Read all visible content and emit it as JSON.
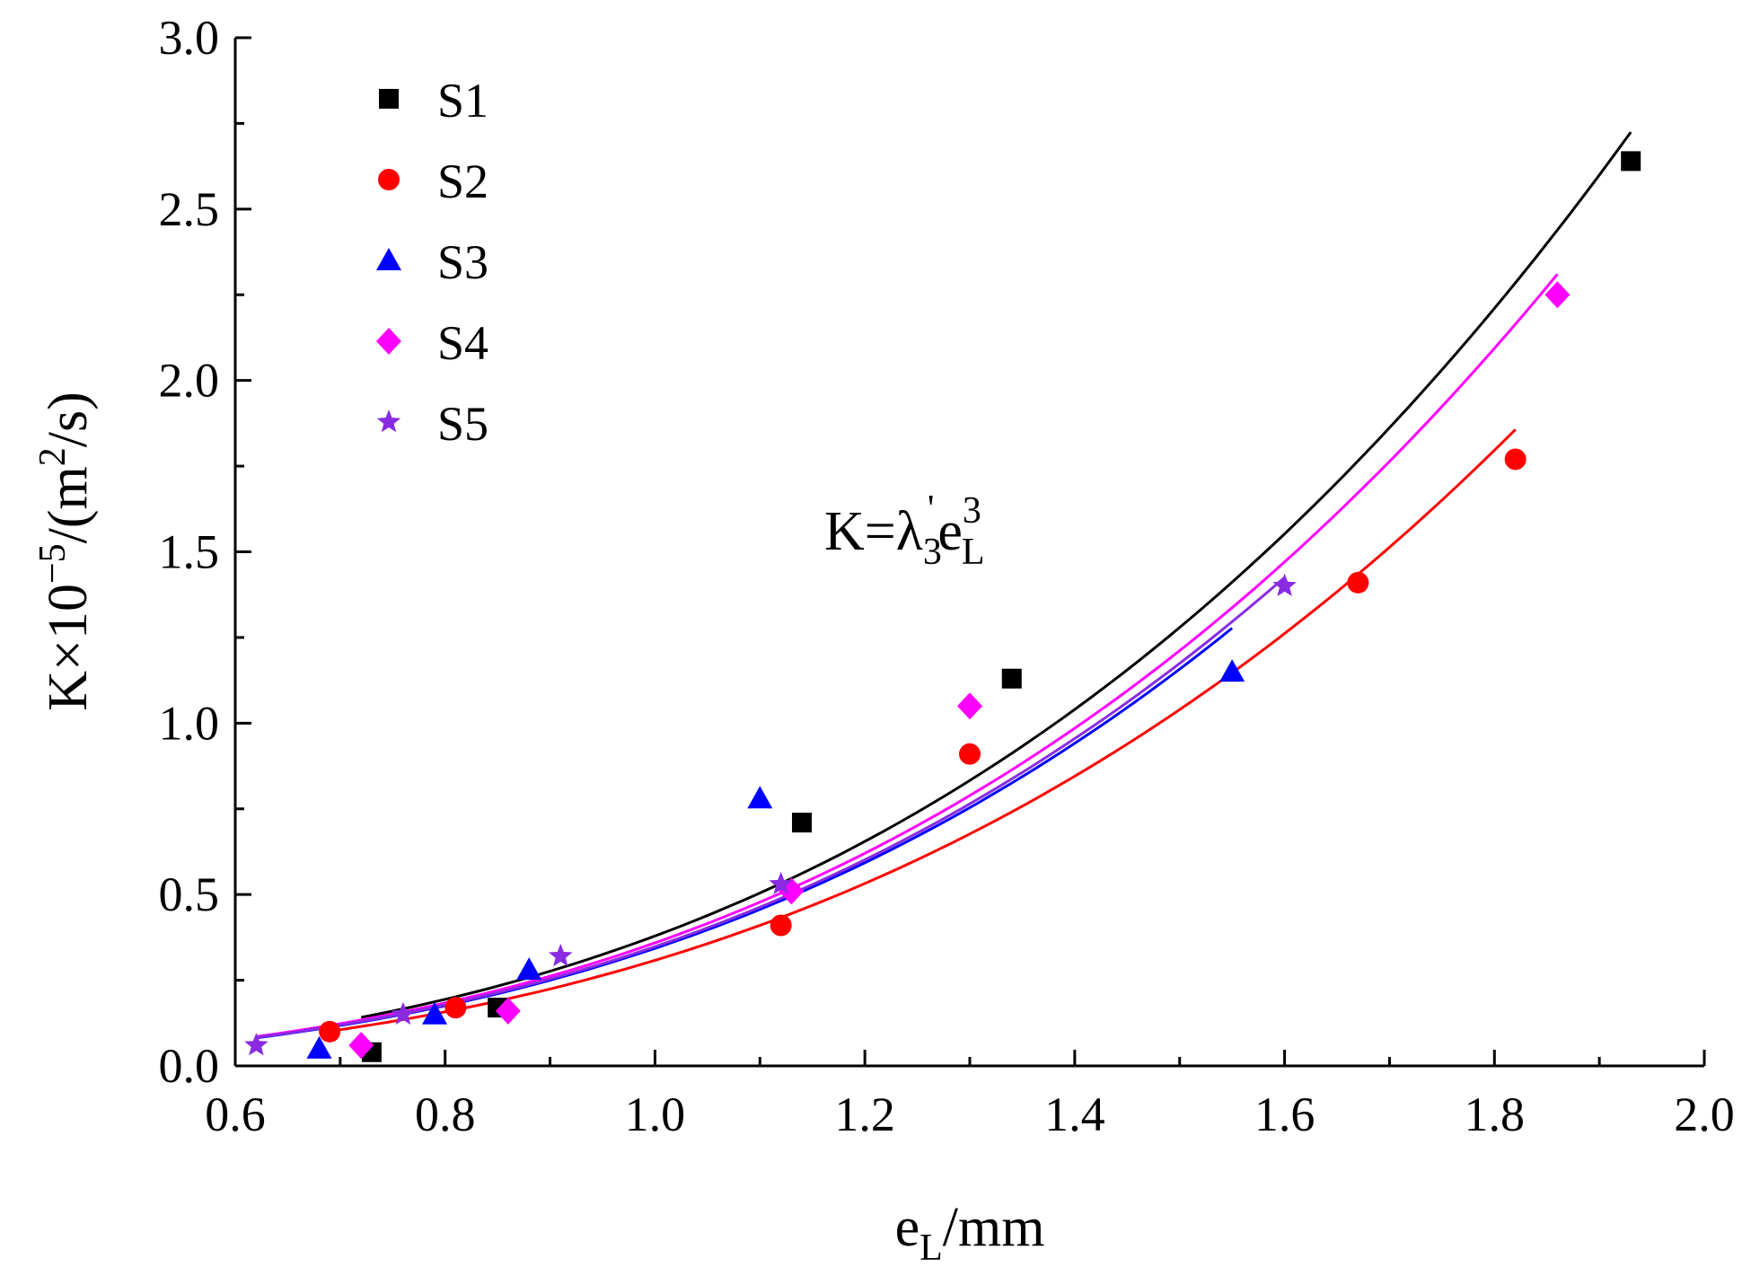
{
  "chart_data": {
    "type": "scatter",
    "xlabel": {
      "main": "e",
      "sub": "L",
      "rest": "/mm"
    },
    "ylabel": {
      "main": "K×10",
      "sup1": "−5",
      "mid": "/(m",
      "sup2": "2",
      "end": "/s)"
    },
    "xlim": [
      0.6,
      2.0
    ],
    "ylim": [
      0.0,
      3.0
    ],
    "xticks": [
      0.6,
      0.8,
      1.0,
      1.2,
      1.4,
      1.6,
      1.8,
      2.0
    ],
    "yticks": [
      0.0,
      0.5,
      1.0,
      1.5,
      2.0,
      2.5,
      3.0
    ],
    "xtick_labels": [
      "0.6",
      "0.8",
      "1.0",
      "1.2",
      "1.4",
      "1.6",
      "1.8",
      "2.0"
    ],
    "ytick_labels": [
      "0.0",
      "0.5",
      "1.0",
      "1.5",
      "2.0",
      "2.5",
      "3.0"
    ],
    "grid": false,
    "legend_position": "top-left",
    "annotation": {
      "k": "K=λ",
      "sub": "3",
      "prime": "'",
      "e": "e",
      "sup": "3",
      "sub2": "L"
    },
    "series": [
      {
        "name": "S1",
        "marker": "square",
        "color": "#000000",
        "x": [
          0.73,
          0.85,
          1.14,
          1.34,
          1.93
        ],
        "y": [
          0.04,
          0.17,
          0.71,
          1.13,
          2.64
        ],
        "fit": {
          "coef": 0.379,
          "x_range": [
            0.72,
            1.93
          ]
        }
      },
      {
        "name": "S2",
        "marker": "circle",
        "color": "#ff0000",
        "x": [
          0.69,
          0.81,
          1.12,
          1.3,
          1.67,
          1.82
        ],
        "y": [
          0.1,
          0.17,
          0.41,
          0.91,
          1.41,
          1.77
        ],
        "fit": {
          "coef": 0.308,
          "x_range": [
            0.69,
            1.82
          ]
        }
      },
      {
        "name": "S3",
        "marker": "triangle",
        "color": "#0000ff",
        "x": [
          0.68,
          0.79,
          0.88,
          1.1,
          1.55
        ],
        "y": [
          0.05,
          0.15,
          0.28,
          0.78,
          1.15
        ],
        "fit": {
          "coef": 0.343,
          "x_range": [
            0.62,
            1.55
          ]
        }
      },
      {
        "name": "S4",
        "marker": "diamond",
        "color": "#ff00ff",
        "x": [
          0.72,
          0.86,
          1.13,
          1.3,
          1.86
        ],
        "y": [
          0.06,
          0.16,
          0.51,
          1.05,
          2.25
        ],
        "fit": {
          "coef": 0.359,
          "x_range": [
            0.62,
            1.86
          ]
        }
      },
      {
        "name": "S5",
        "marker": "star",
        "color": "#8a2be2",
        "x": [
          0.62,
          0.76,
          0.91,
          1.12,
          1.6
        ],
        "y": [
          0.06,
          0.15,
          0.32,
          0.53,
          1.4
        ],
        "fit": {
          "coef": 0.348,
          "x_range": [
            0.62,
            1.6
          ]
        }
      }
    ]
  }
}
